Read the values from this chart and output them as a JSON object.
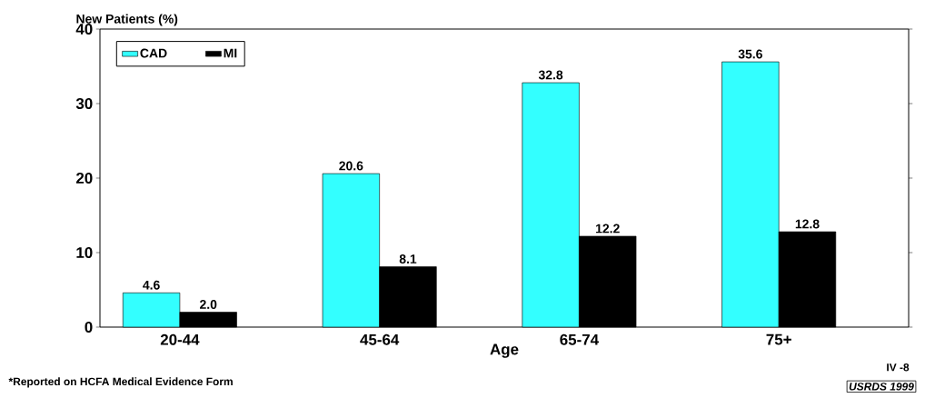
{
  "chart_data": {
    "type": "bar",
    "ylabel": "New Patients (%)",
    "xlabel": "Age",
    "categories": [
      "20-44",
      "45-64",
      "65-74",
      "75+"
    ],
    "series": [
      {
        "name": "CAD",
        "color": "#33ffff",
        "values": [
          4.6,
          20.6,
          32.8,
          35.6
        ],
        "value_labels": [
          "4.6",
          "20.6",
          "32.8",
          "35.6"
        ]
      },
      {
        "name": "MI",
        "color": "#000000",
        "values": [
          2.0,
          8.1,
          12.2,
          12.8
        ],
        "value_labels": [
          "2.0",
          "8.1",
          "12.2",
          "12.8"
        ]
      }
    ],
    "ylim": [
      0,
      40
    ],
    "yticks": [
      0,
      10,
      20,
      30,
      40
    ],
    "grid": false,
    "legend": "top left",
    "annotations": [
      "*Reported on HCFA Medical Evidence Form",
      "IV -8",
      "USRDS 1999"
    ]
  }
}
